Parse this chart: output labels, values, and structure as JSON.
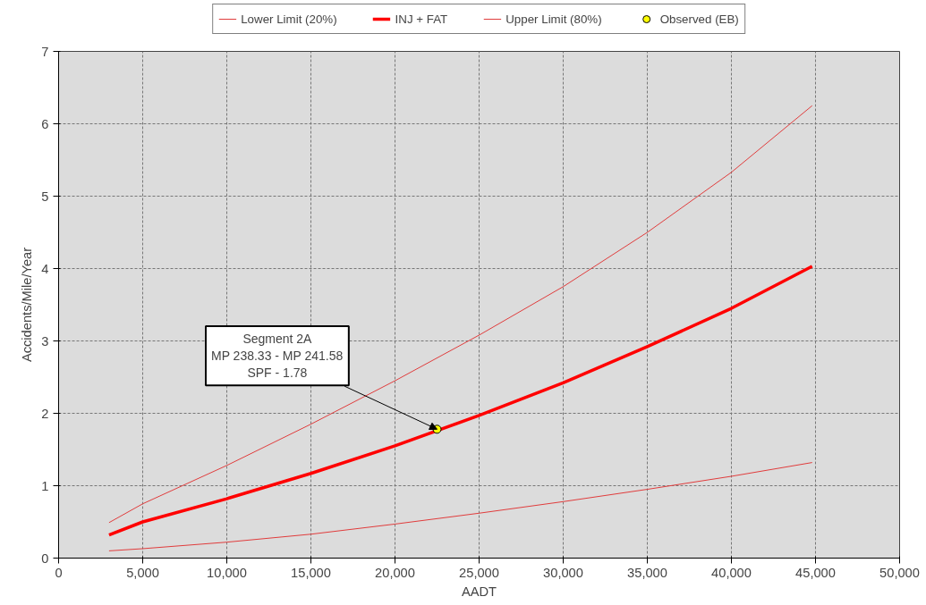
{
  "chart_data": {
    "type": "line",
    "xlabel": "AADT",
    "ylabel": "Accidents/Mile/Year",
    "xlim": [
      0,
      50000
    ],
    "xticks": [
      {
        "value": 0,
        "label": "0"
      },
      {
        "value": 5000,
        "label": "5,000"
      },
      {
        "value": 10000,
        "label": "10,000"
      },
      {
        "value": 15000,
        "label": "15,000"
      },
      {
        "value": 20000,
        "label": "20,000"
      },
      {
        "value": 25000,
        "label": "25,000"
      },
      {
        "value": 30000,
        "label": "30,000"
      },
      {
        "value": 35000,
        "label": "35,000"
      },
      {
        "value": 40000,
        "label": "40,000"
      },
      {
        "value": 45000,
        "label": "45,000"
      },
      {
        "value": 50000,
        "label": "50,000"
      }
    ],
    "ylim": [
      0,
      7
    ],
    "yticks": [
      0,
      1,
      2,
      3,
      4,
      5,
      6,
      7
    ],
    "grid": true,
    "legend": "top",
    "line_style": "solid",
    "x": [
      3000,
      5000,
      10000,
      15000,
      20000,
      25000,
      30000,
      35000,
      40000,
      44800
    ],
    "series": [
      {
        "name": "Lower Limit (20%)",
        "color": "#e03c3c",
        "values": [
          0.1,
          0.13,
          0.22,
          0.33,
          0.47,
          0.62,
          0.78,
          0.95,
          1.13,
          1.32
        ]
      },
      {
        "name": "INJ + FAT",
        "color": "#ff0000",
        "values": [
          0.32,
          0.5,
          0.82,
          1.17,
          1.55,
          1.97,
          2.42,
          2.92,
          3.45,
          4.03
        ]
      },
      {
        "name": "Upper Limit (80%)",
        "color": "#e03c3c",
        "values": [
          0.49,
          0.75,
          1.28,
          1.85,
          2.45,
          3.08,
          3.75,
          4.5,
          5.33,
          6.25
        ]
      },
      {
        "name": "Observed (EB)",
        "type": "scatter",
        "marker": "circle",
        "color": "#ffff00",
        "x": [
          22500
        ],
        "values": [
          1.78
        ]
      }
    ],
    "annotations": [
      {
        "text": "Segment 2A\nMP 238.33 - MP 241.58\nSPF - 1.78",
        "x": 22500,
        "y": 1.78
      }
    ]
  }
}
